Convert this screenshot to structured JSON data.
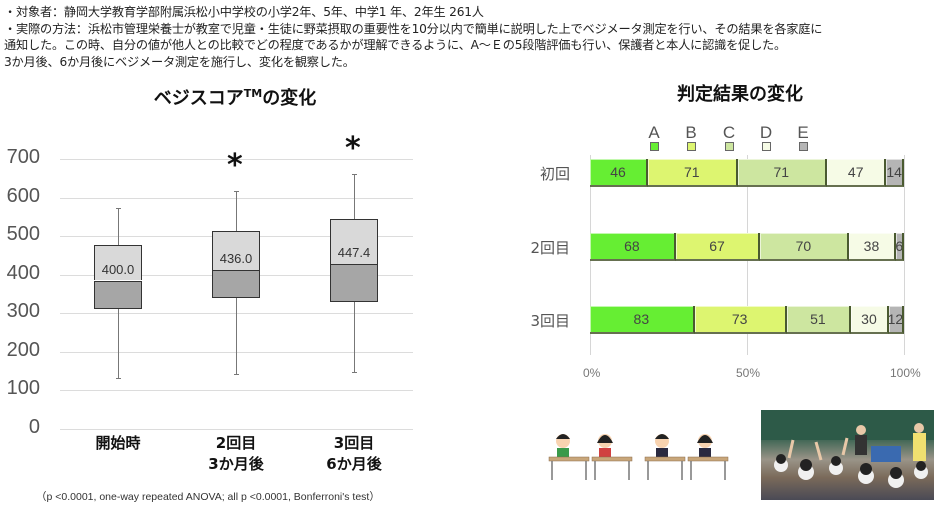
{
  "notes": [
    "・対象者：静岡大学教育学部附属浜松小中学校の小学2年、5年、中学1 年、2年生 261人",
    "・実際の方法：浜松市管理栄養士が教室で児童・生徒に野菜摂取の重要性を10分以内で簡単に説明した上でベジメータ測定を行い、その結果を各家庭に",
    "通知した。この時、自分の値が他人との比較でどの程度であるかが理解できるように、A～Ｅの5段階評価も行い、保護者と本人に認識を促した。",
    "3か月後、6か月後にベジメータ測定を施行し、変化を観察した。"
  ],
  "footnote": "（p <0.0001, one-way repeated ANOVA; all p <0.0001, Bonferroni's test）",
  "images": {
    "illustration": "students-at-desks-illustration",
    "photo": "classroom-photo"
  },
  "colors": {
    "A": "#66ee33",
    "B": "#ddf570",
    "C": "#cde6a0",
    "D": "#f6fbe6",
    "E": "#b5b5b5",
    "box_upper": "#d9d9d9",
    "box_lower": "#a6a6a6"
  },
  "chart_data": [
    {
      "type": "boxplot",
      "title": "ベジスコアTMの変化",
      "title_main": "ベジスコア",
      "title_sup": "TM",
      "title_tail": "の変化",
      "xlabel": "",
      "ylabel": "",
      "ylim": [
        0,
        700
      ],
      "yticks": [
        "700",
        "600",
        "500",
        "400",
        "300",
        "200",
        "100",
        "0"
      ],
      "grid": true,
      "categories": [
        {
          "label_line1": "開始時",
          "label_line2": ""
        },
        {
          "label_line1": "2回目",
          "label_line2": "3か月後"
        },
        {
          "label_line1": "3回目",
          "label_line2": "6か月後"
        }
      ],
      "series": [
        {
          "name": "開始時",
          "min": 133,
          "q1": 310,
          "median": 385,
          "q3": 478,
          "max": 572,
          "mean": "400.0",
          "significance": ""
        },
        {
          "name": "2回目 3か月後",
          "min": 143,
          "q1": 340,
          "median": 412,
          "q3": 513,
          "max": 617,
          "mean": "436.0",
          "significance": "*"
        },
        {
          "name": "3回目 6か月後",
          "min": 148,
          "q1": 329,
          "median": 427,
          "q3": 544,
          "max": 662,
          "mean": "447.4",
          "significance": "*"
        }
      ]
    },
    {
      "type": "bar",
      "orientation": "horizontal",
      "stacked": "100%",
      "title": "判定結果の変化",
      "legend": [
        "A",
        "B",
        "C",
        "D",
        "E"
      ],
      "legend_position": "top",
      "categories": [
        "初回",
        "2回目",
        "3回目"
      ],
      "xticks": [
        "0%",
        "50%",
        "100%"
      ],
      "series": [
        {
          "name": "A",
          "values": [
            46,
            68,
            83
          ]
        },
        {
          "name": "B",
          "values": [
            71,
            67,
            73
          ]
        },
        {
          "name": "C",
          "values": [
            71,
            70,
            51
          ]
        },
        {
          "name": "D",
          "values": [
            47,
            38,
            30
          ]
        },
        {
          "name": "E",
          "values": [
            14,
            6,
            12
          ]
        }
      ]
    }
  ]
}
